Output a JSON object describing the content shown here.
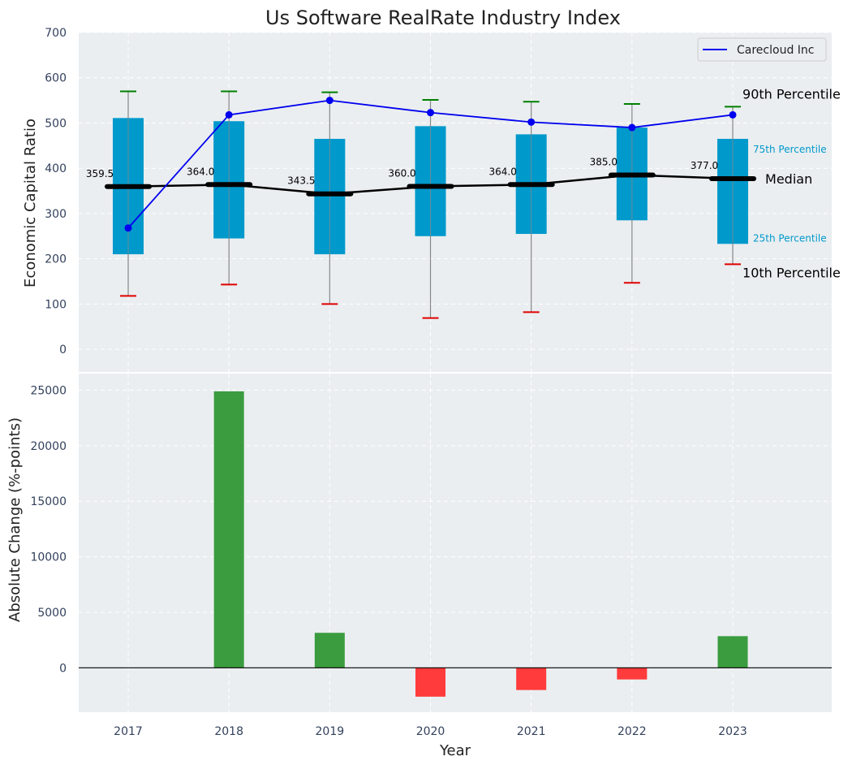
{
  "chart_data": [
    {
      "type": "box",
      "title": "Us Software RealRate Industry Index",
      "ylabel": "Economic Capital Ratio",
      "xlabel": "",
      "ylim": [
        -50,
        700
      ],
      "yticks": [
        0,
        100,
        200,
        300,
        400,
        500,
        600,
        700
      ],
      "grid": true,
      "categories": [
        "2017",
        "2018",
        "2019",
        "2020",
        "2021",
        "2022",
        "2023"
      ],
      "p10": [
        118,
        143,
        100,
        69,
        82,
        147,
        188
      ],
      "p25": [
        210,
        245,
        210,
        250,
        255,
        285,
        233
      ],
      "median": [
        359.5,
        364.0,
        343.5,
        360.0,
        364.0,
        385.0,
        377.0
      ],
      "median_labels": [
        "359.5",
        "364.0",
        "343.5",
        "360.0",
        "364.0",
        "385.0",
        "377.0"
      ],
      "p75": [
        511,
        504,
        465,
        493,
        475,
        490,
        465
      ],
      "p90": [
        570,
        570,
        568,
        551,
        547,
        542,
        536
      ],
      "series": [
        {
          "name": "Carecloud Inc",
          "values": [
            268,
            518,
            550,
            523,
            502,
            490,
            518
          ]
        }
      ],
      "legend": {
        "position": "top-right",
        "entries": [
          "Carecloud Inc"
        ]
      },
      "annotations": {
        "p90": "90th Percentile",
        "p75": "75th Percentile",
        "median": "Median",
        "p25": "25th Percentile",
        "p10": "10th Percentile"
      },
      "colors": {
        "box": "#0099cc",
        "median": "#000000",
        "series": "#0000ee",
        "p90_cap": "#008000",
        "p10_cap": "#e00000",
        "whisker": "#888888",
        "plot_bg": "#eaeef0"
      }
    },
    {
      "type": "bar",
      "xlabel": "Year",
      "ylabel": "Absolute Change (%-points)",
      "ylim": [
        -4000,
        26500
      ],
      "yticks": [
        0,
        5000,
        10000,
        15000,
        20000,
        25000
      ],
      "grid": true,
      "categories": [
        "2017",
        "2018",
        "2019",
        "2020",
        "2021",
        "2022",
        "2023"
      ],
      "values": [
        0,
        24900,
        3150,
        -2600,
        -2000,
        -1050,
        2850
      ],
      "colors": {
        "positive": "#3a9c3e",
        "negative": "#ff3b3b",
        "zero_line": "#000000"
      }
    }
  ]
}
